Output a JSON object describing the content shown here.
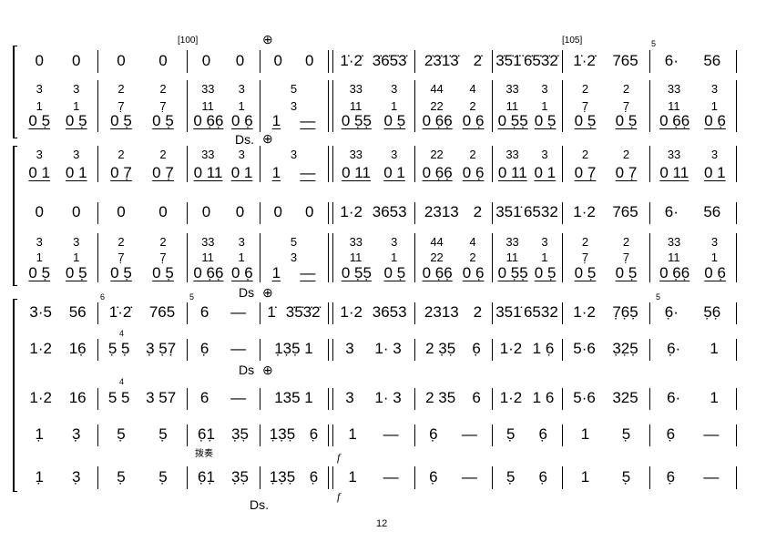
{
  "score": {
    "rows": [
      {
        "id": "r1",
        "kind": "melody",
        "measures": [
          [
            "0",
            "0"
          ],
          [
            "0",
            "0"
          ],
          [
            "0",
            "0"
          ],
          [
            "0",
            "0"
          ],
          [
            "1̇·2̇",
            "3̇6̇5̇3̇"
          ],
          [
            "2̇3̇1̇3̇",
            "2̇"
          ],
          [
            "3̇5̇1̈",
            "6̇5̇3̇2̇"
          ],
          [
            "1̇·2̇",
            "765"
          ],
          [
            "6·",
            "56"
          ]
        ]
      },
      {
        "id": "r2a",
        "kind": "chord",
        "measures": [
          [
            "3",
            "3"
          ],
          [
            "2",
            "2"
          ],
          [
            "33",
            "3"
          ],
          [
            "5"
          ],
          [
            "33",
            "3"
          ],
          [
            "44",
            "4"
          ],
          [
            "33",
            "3"
          ],
          [
            "2",
            "2"
          ],
          [
            "33",
            "3"
          ]
        ]
      },
      {
        "id": "r2b",
        "kind": "chord",
        "measures": [
          [
            "1",
            "1"
          ],
          [
            "7̣",
            "7̣"
          ],
          [
            "11",
            "1"
          ],
          [
            "3"
          ],
          [
            "11",
            "1"
          ],
          [
            "22",
            "2"
          ],
          [
            "11",
            "1"
          ],
          [
            "7̣",
            "7̣"
          ],
          [
            "11",
            "1"
          ]
        ]
      },
      {
        "id": "r2c",
        "kind": "bass",
        "measures": [
          [
            "0 5̣",
            "0 5̣"
          ],
          [
            "0 5̣",
            "0 5̣"
          ],
          [
            "0 6̣6̣",
            "0 6̣"
          ],
          [
            "1",
            "—"
          ],
          [
            "0 5̣5̣",
            "0 5̣"
          ],
          [
            "0 6̣6̣",
            "0 6̣"
          ],
          [
            "0 5̣5̣",
            "0 5̣"
          ],
          [
            "0 5̣",
            "0 5̣"
          ],
          [
            "0 6̣6̣",
            "0 6̣"
          ]
        ]
      },
      {
        "id": "r3a",
        "kind": "chord",
        "measures": [
          [
            "3",
            "3"
          ],
          [
            "2",
            "2"
          ],
          [
            "33",
            "3"
          ],
          [
            "3"
          ],
          [
            "33",
            "3"
          ],
          [
            "22",
            "2"
          ],
          [
            "33",
            "3"
          ],
          [
            "2",
            "2"
          ],
          [
            "33",
            "3"
          ]
        ]
      },
      {
        "id": "r3b",
        "kind": "bass",
        "measures": [
          [
            "0 1",
            "0 1"
          ],
          [
            "0 7̣",
            "0 7̣"
          ],
          [
            "0 11",
            "0 1"
          ],
          [
            "1",
            "—"
          ],
          [
            "0 11",
            "0 1"
          ],
          [
            "0 6̣6̣",
            "0 6̣"
          ],
          [
            "0 11",
            "0 1"
          ],
          [
            "0 7̣",
            "0 7̣"
          ],
          [
            "0 11",
            "0 1"
          ]
        ]
      },
      {
        "id": "r4",
        "kind": "melody",
        "measures": [
          [
            "0",
            "0"
          ],
          [
            "0",
            "0"
          ],
          [
            "0",
            "0"
          ],
          [
            "0",
            "0"
          ],
          [
            "1·2",
            "3653"
          ],
          [
            "2313",
            "2"
          ],
          [
            "351̇",
            "6532"
          ],
          [
            "1·2",
            "765"
          ],
          [
            "6·",
            "56"
          ]
        ]
      },
      {
        "id": "r5a",
        "kind": "chord",
        "measures": [
          [
            "3",
            "3"
          ],
          [
            "2",
            "2"
          ],
          [
            "33",
            "3"
          ],
          [
            "5"
          ],
          [
            "33",
            "3"
          ],
          [
            "44",
            "4"
          ],
          [
            "33",
            "3"
          ],
          [
            "2",
            "2"
          ],
          [
            "33",
            "3"
          ]
        ]
      },
      {
        "id": "r5b",
        "kind": "chord",
        "measures": [
          [
            "1",
            "1"
          ],
          [
            "7̣",
            "7̣"
          ],
          [
            "11",
            "1"
          ],
          [
            "3"
          ],
          [
            "11",
            "1"
          ],
          [
            "22",
            "2"
          ],
          [
            "11",
            "1"
          ],
          [
            "7̣",
            "7̣"
          ],
          [
            "11",
            "1"
          ]
        ]
      },
      {
        "id": "r5c",
        "kind": "bass",
        "measures": [
          [
            "0 5̣",
            "0 5̣"
          ],
          [
            "0 5̣",
            "0 5̣"
          ],
          [
            "0 6̣6̣",
            "0 6̣"
          ],
          [
            "1",
            "—"
          ],
          [
            "0 5̣5̣",
            "0 5̣"
          ],
          [
            "0 6̣6̣",
            "0 6̣"
          ],
          [
            "0 5̣5̣",
            "0 5̣"
          ],
          [
            "0 5̣",
            "0 5̣"
          ],
          [
            "0 6̣6̣",
            "0 6̣"
          ]
        ]
      },
      {
        "id": "r6",
        "kind": "melody",
        "measures": [
          [
            "3·5",
            "56"
          ],
          [
            "1̇·2̇",
            "765"
          ],
          [
            "6",
            "—"
          ],
          [
            "1̇",
            "3̇5̇3̇2̇"
          ],
          [
            "1·2",
            "3653"
          ],
          [
            "2313",
            "2"
          ],
          [
            "351̇",
            "6532"
          ],
          [
            "1·2",
            "7̣6̣5̣"
          ],
          [
            "6̣·",
            "5̣6̣"
          ]
        ]
      },
      {
        "id": "r7",
        "kind": "melody",
        "measures": [
          [
            "1·2",
            "16̣"
          ],
          [
            "5̣ 5̣",
            "3̣ 5̣7̣"
          ],
          [
            "6̣",
            "—"
          ],
          [
            "1̣3̣5̣ 1"
          ],
          [
            "3",
            "1· 3"
          ],
          [
            "2 3̣5̣",
            "6̣"
          ],
          [
            "1·2",
            "1 6̣"
          ],
          [
            "5·6",
            "3̣2̣5̣"
          ],
          [
            "6̣·",
            "1"
          ]
        ]
      },
      {
        "id": "r8",
        "kind": "melody",
        "measures": [
          [
            "1·2",
            "16"
          ],
          [
            "5 5",
            "3 57"
          ],
          [
            "6",
            "—"
          ],
          [
            "135 1"
          ],
          [
            "3",
            "1· 3"
          ],
          [
            "2 35",
            "6"
          ],
          [
            "1·2",
            "1 6"
          ],
          [
            "5·6",
            "325"
          ],
          [
            "6·",
            "1"
          ]
        ]
      },
      {
        "id": "r9",
        "kind": "melody",
        "measures": [
          [
            "1̣",
            "3̣"
          ],
          [
            "5̣",
            "5̣"
          ],
          [
            "6̣1̣",
            "3̣5̣"
          ],
          [
            "1̣3̣5̣",
            "6̣"
          ],
          [
            "1",
            "—"
          ],
          [
            "6̣",
            "—"
          ],
          [
            "5̣",
            "6̣"
          ],
          [
            "1",
            "5̣"
          ],
          [
            "6̣",
            "—"
          ]
        ]
      },
      {
        "id": "r10",
        "kind": "melody",
        "measures": [
          [
            "1̣",
            "3̣"
          ],
          [
            "5̣",
            "5̣"
          ],
          [
            "6̣1̣",
            "3̣5̣"
          ],
          [
            "1̣3̣5̣",
            "6̣"
          ],
          [
            "1",
            "—"
          ],
          [
            "6̣",
            "—"
          ],
          [
            "5̣",
            "6̣"
          ],
          [
            "1",
            "5̣"
          ],
          [
            "6̣",
            "—"
          ]
        ]
      }
    ],
    "rehearsal_marks": [
      "[100]",
      "[105]"
    ],
    "ds_marks": [
      "Ds.",
      "Ds",
      "Ds",
      "Ds."
    ],
    "coda_symbol": "⊕",
    "technique_label": "拨奏",
    "dynamic": "f",
    "grace_notes": [
      "5",
      "6",
      "5",
      "5",
      "4",
      "5"
    ],
    "page_number": "12"
  }
}
